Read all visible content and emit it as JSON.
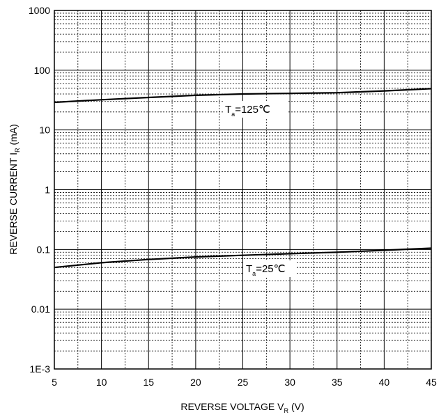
{
  "chart_data": {
    "type": "line",
    "xlabel": "REVERSE VOLTAGE V",
    "xlabel_sub": "R",
    "xlabel_unit": "(V)",
    "ylabel": "REVERSE CURRENT I",
    "ylabel_sub": "R",
    "ylabel_unit": "(mA)",
    "x_ticks": [
      "5",
      "10",
      "15",
      "20",
      "25",
      "30",
      "35",
      "40",
      "45"
    ],
    "y_ticks": [
      "1E-3",
      "0.01",
      "0.1",
      "1",
      "10",
      "100",
      "1000"
    ],
    "xlim": [
      5,
      45
    ],
    "ylim": [
      0.001,
      1000
    ],
    "yscale": "log",
    "grid": true,
    "series": [
      {
        "name": "Ta=125℃",
        "x": [
          5,
          10,
          15,
          20,
          25,
          30,
          35,
          40,
          45
        ],
        "y": [
          29,
          32,
          35,
          38,
          40,
          41,
          42,
          45,
          49
        ]
      },
      {
        "name": "Ta=25℃",
        "x": [
          5,
          10,
          15,
          20,
          25,
          30,
          35,
          40,
          45
        ],
        "y": [
          0.05,
          0.06,
          0.068,
          0.075,
          0.08,
          0.085,
          0.09,
          0.097,
          0.105
        ]
      }
    ],
    "annotations": [
      {
        "base": "T",
        "sub": "a",
        "rest": "=125℃"
      },
      {
        "base": "T",
        "sub": "a",
        "rest": "=25℃"
      }
    ]
  }
}
